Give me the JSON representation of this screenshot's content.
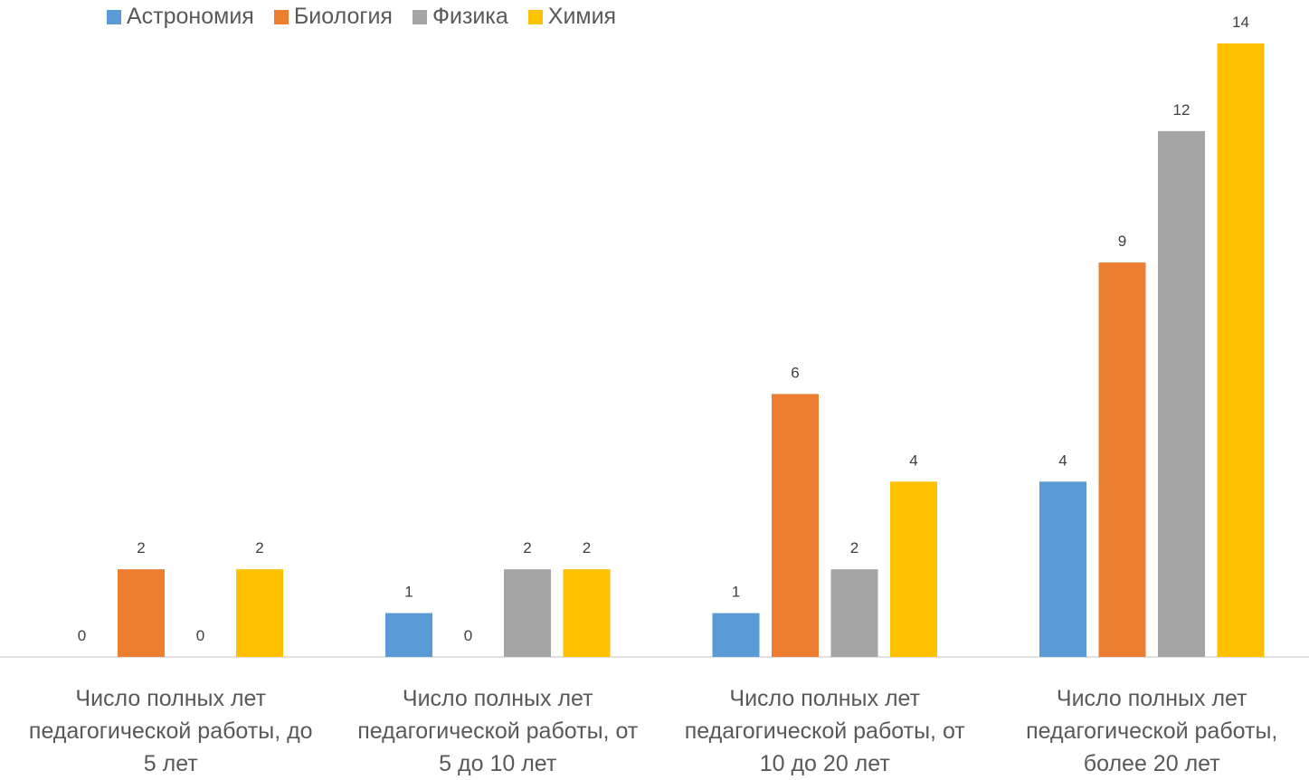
{
  "chart_data": {
    "type": "bar",
    "categories": [
      "Число полных лет педагогической работы, до 5 лет",
      "Число полных лет педагогической работы, от 5 до 10 лет",
      "Число полных лет педагогической работы, от 10 до 20 лет",
      "Число полных лет педагогической работы, более 20 лет"
    ],
    "series": [
      {
        "name": "Астрономия",
        "color": "#5b9bd5",
        "values": [
          0,
          1,
          1,
          4
        ]
      },
      {
        "name": "Биология",
        "color": "#ed7d31",
        "values": [
          2,
          0,
          6,
          9
        ]
      },
      {
        "name": "Физика",
        "color": "#a5a5a5",
        "values": [
          0,
          2,
          2,
          12
        ]
      },
      {
        "name": "Химия",
        "color": "#ffc000",
        "values": [
          2,
          2,
          4,
          14
        ]
      }
    ],
    "ylim": [
      0,
      14
    ],
    "legend": "top-left"
  }
}
